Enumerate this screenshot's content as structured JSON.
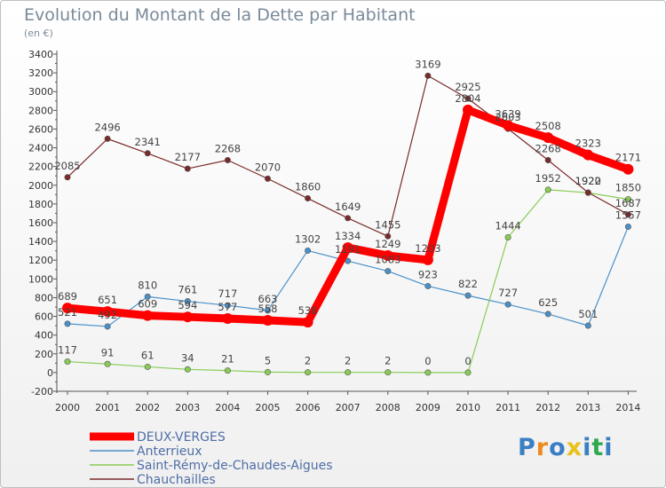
{
  "chart_data": {
    "type": "line",
    "title": "Evolution du Montant de la Dette par Habitant",
    "subtitle": "(en €)",
    "categories": [
      "2000",
      "2001",
      "2002",
      "2003",
      "2004",
      "2005",
      "2006",
      "2007",
      "2008",
      "2009",
      "2010",
      "2011",
      "2012",
      "2013",
      "2014"
    ],
    "ylim": [
      -200,
      3400
    ],
    "yticks": [
      -200,
      0,
      200,
      400,
      600,
      800,
      1000,
      1200,
      1400,
      1600,
      1800,
      2000,
      2200,
      2400,
      2600,
      2800,
      3000,
      3200,
      3400
    ],
    "grid": false,
    "legend_position": "bottom-left",
    "series": [
      {
        "name": "DEUX-VERGES",
        "color": "#ff0000",
        "values": [
          689,
          651,
          609,
          594,
          577,
          558,
          538,
          1334,
          1249,
          1203,
          2804,
          2639,
          2508,
          2323,
          2171
        ]
      },
      {
        "name": "Anterrieux",
        "color": "#4a90c8",
        "values": [
          521,
          492,
          810,
          761,
          717,
          663,
          1302,
          1191,
          1083,
          923,
          822,
          727,
          625,
          501,
          1557
        ]
      },
      {
        "name": "Saint-Rémy-de-Chaudes-Aigues",
        "color": "#88cc55",
        "values": [
          117,
          91,
          61,
          34,
          21,
          5,
          2,
          2,
          2,
          0,
          0,
          1444,
          1952,
          1920,
          1850
        ]
      },
      {
        "name": "Chauchailles",
        "color": "#7a2a2a",
        "values": [
          2085,
          2496,
          2341,
          2177,
          2268,
          2070,
          1860,
          1649,
          1455,
          3169,
          2925,
          2603,
          2268,
          1922,
          1687
        ]
      }
    ]
  },
  "logo": {
    "text": "Proxiti",
    "letters": [
      "P",
      "r",
      "o",
      "x",
      "i",
      "t",
      "i"
    ],
    "colors": [
      "#3a7fc4",
      "#f08a1c",
      "#3a7fc4",
      "#e8c21a",
      "#3a7fc4",
      "#2fa84f",
      "#3a7fc4"
    ]
  }
}
